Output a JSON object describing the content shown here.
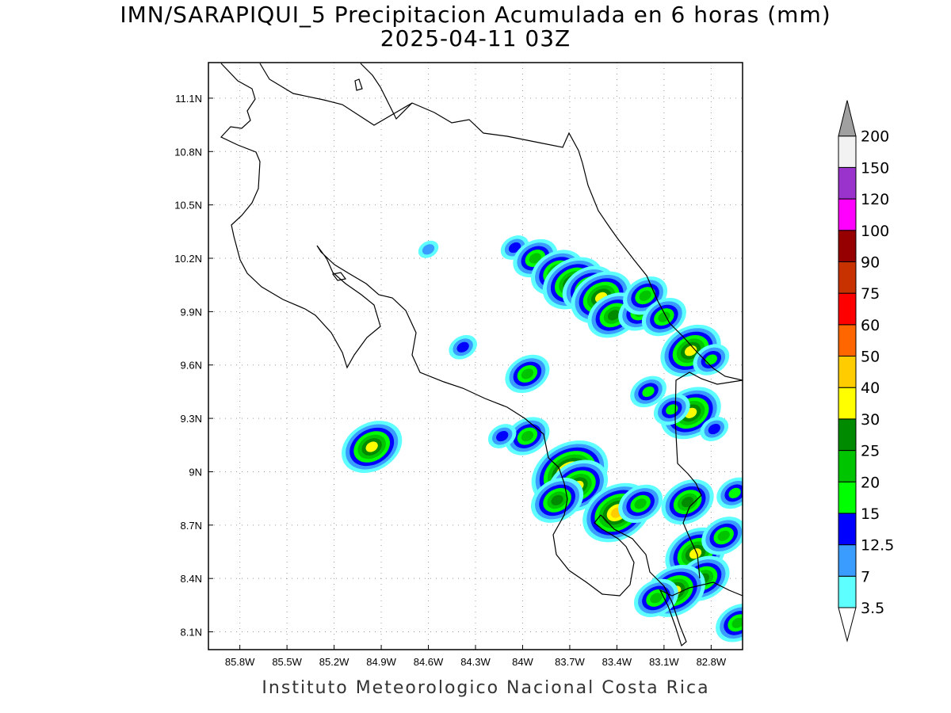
{
  "title": {
    "line1": "IMN/SARAPIQUI_5 Precipitacion Acumulada en 6 horas (mm)",
    "line2": "2025-04-11 03Z"
  },
  "footer": "Instituto Meteorologico Nacional Costa Rica",
  "map": {
    "lon_range": [
      -86.0,
      -82.6
    ],
    "lat_range": [
      8.0,
      11.3
    ],
    "x_ticks": [
      "85.8W",
      "85.5W",
      "85.2W",
      "84.9W",
      "84.6W",
      "84.3W",
      "84W",
      "83.7W",
      "83.4W",
      "83.1W",
      "82.8W"
    ],
    "x_tick_values": [
      -85.8,
      -85.5,
      -85.2,
      -84.9,
      -84.6,
      -84.3,
      -84.0,
      -83.7,
      -83.4,
      -83.1,
      -82.8
    ],
    "y_ticks": [
      "11.1N",
      "10.8N",
      "10.5N",
      "10.2N",
      "9.9N",
      "9.6N",
      "9.3N",
      "9N",
      "8.7N",
      "8.4N",
      "8.1N"
    ],
    "y_tick_values": [
      11.1,
      10.8,
      10.5,
      10.2,
      9.9,
      9.6,
      9.3,
      9.0,
      8.7,
      8.4,
      8.1
    ],
    "grid": "dotted"
  },
  "colorbar": {
    "labels": [
      "3.5",
      "7",
      "12.5",
      "15",
      "20",
      "25",
      "30",
      "40",
      "50",
      "60",
      "75",
      "90",
      "100",
      "120",
      "150",
      "200"
    ],
    "colors": [
      "#5effff",
      "#3a9cff",
      "#0000ff",
      "#00ff00",
      "#00c400",
      "#008a00",
      "#ffff00",
      "#ffcc00",
      "#ff6600",
      "#ff0000",
      "#c83200",
      "#960000",
      "#ff00ff",
      "#9933cc",
      "#f2f2f2",
      "#a0a0a0"
    ]
  },
  "precip_cells": [
    {
      "lon": -84.05,
      "lat": 10.26,
      "level": 2
    },
    {
      "lon": -83.92,
      "lat": 10.2,
      "level": 4
    },
    {
      "lon": -83.78,
      "lat": 10.12,
      "level": 5
    },
    {
      "lon": -83.68,
      "lat": 10.06,
      "level": 6
    },
    {
      "lon": -83.58,
      "lat": 10.03,
      "level": 5
    },
    {
      "lon": -83.5,
      "lat": 9.98,
      "level": 6
    },
    {
      "lon": -83.42,
      "lat": 9.88,
      "level": 5
    },
    {
      "lon": -83.25,
      "lat": 9.9,
      "level": 4
    },
    {
      "lon": -83.22,
      "lat": 9.99,
      "level": 4
    },
    {
      "lon": -83.1,
      "lat": 9.87,
      "level": 4
    },
    {
      "lon": -82.93,
      "lat": 9.68,
      "level": 6
    },
    {
      "lon": -82.8,
      "lat": 9.63,
      "level": 3
    },
    {
      "lon": -84.96,
      "lat": 9.14,
      "level": 6
    },
    {
      "lon": -83.7,
      "lat": 8.99,
      "level": 8
    },
    {
      "lon": -83.65,
      "lat": 8.92,
      "level": 6
    },
    {
      "lon": -83.78,
      "lat": 8.84,
      "level": 5
    },
    {
      "lon": -83.4,
      "lat": 8.77,
      "level": 7
    },
    {
      "lon": -83.25,
      "lat": 8.82,
      "level": 4
    },
    {
      "lon": -82.95,
      "lat": 8.83,
      "level": 5
    },
    {
      "lon": -82.9,
      "lat": 8.54,
      "level": 6
    },
    {
      "lon": -82.85,
      "lat": 8.4,
      "level": 5
    },
    {
      "lon": -83.03,
      "lat": 8.33,
      "level": 6
    },
    {
      "lon": -83.15,
      "lat": 8.29,
      "level": 4
    },
    {
      "lon": -82.93,
      "lat": 9.33,
      "level": 6
    },
    {
      "lon": -83.05,
      "lat": 9.35,
      "level": 3
    },
    {
      "lon": -83.2,
      "lat": 9.45,
      "level": 3
    },
    {
      "lon": -83.97,
      "lat": 9.2,
      "level": 4
    },
    {
      "lon": -84.13,
      "lat": 9.2,
      "level": 2
    },
    {
      "lon": -83.97,
      "lat": 9.55,
      "level": 4
    },
    {
      "lon": -84.38,
      "lat": 9.7,
      "level": 2
    },
    {
      "lon": -84.6,
      "lat": 10.25,
      "level": 1
    },
    {
      "lon": -82.72,
      "lat": 8.64,
      "level": 4
    },
    {
      "lon": -82.78,
      "lat": 9.24,
      "level": 2
    },
    {
      "lon": -82.65,
      "lat": 8.88,
      "level": 3
    },
    {
      "lon": -82.63,
      "lat": 8.15,
      "level": 4
    }
  ]
}
